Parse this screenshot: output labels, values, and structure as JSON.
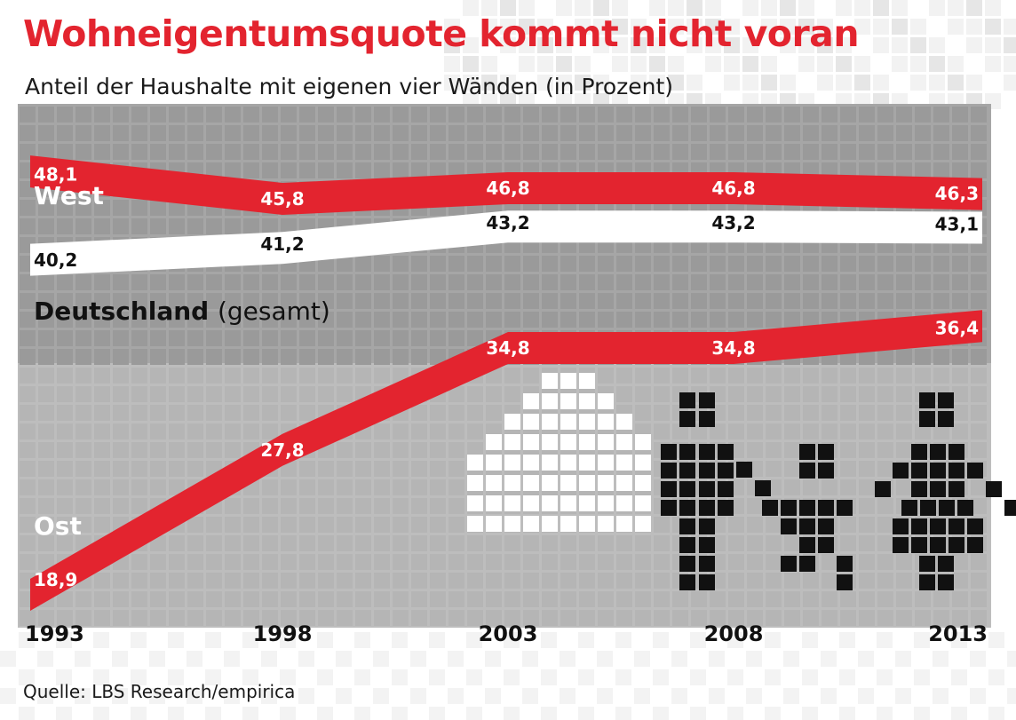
{
  "title": "Wohneigentumsquote kommt nicht voran",
  "subtitle": "Anteil der Haushalte mit eigenen vier Wänden (in Prozent)",
  "source": "Quelle: LBS Research/empirica",
  "colors": {
    "accent_red": "#e3242f",
    "band_white": "#ffffff",
    "text_dark": "#111111",
    "grid_gray": "#b3b3b3"
  },
  "chart_data": {
    "type": "line",
    "x": [
      1993,
      1998,
      2003,
      2008,
      2013
    ],
    "xtick_labels": [
      "1993",
      "1998",
      "2003",
      "2008",
      "2013"
    ],
    "series": [
      {
        "name": "West",
        "values": [
          48.1,
          45.8,
          46.8,
          46.8,
          46.3
        ],
        "labels": [
          "48,1",
          "45,8",
          "46,8",
          "46,8",
          "46,3"
        ],
        "color": "#e3242f"
      },
      {
        "name": "Deutschland",
        "name_suffix": "(gesamt)",
        "values": [
          40.2,
          41.2,
          43.2,
          43.2,
          43.1
        ],
        "labels": [
          "40,2",
          "41,2",
          "43,2",
          "43,2",
          "43,1"
        ],
        "color": "#ffffff"
      },
      {
        "name": "Ost",
        "values": [
          18.9,
          27.8,
          34.8,
          34.8,
          36.4
        ],
        "labels": [
          "18,9",
          "27,8",
          "34,8",
          "34,8",
          "36,4"
        ],
        "color": "#e3242f"
      }
    ],
    "xlabel": "",
    "ylabel": "",
    "grid": false,
    "legend": "none"
  }
}
